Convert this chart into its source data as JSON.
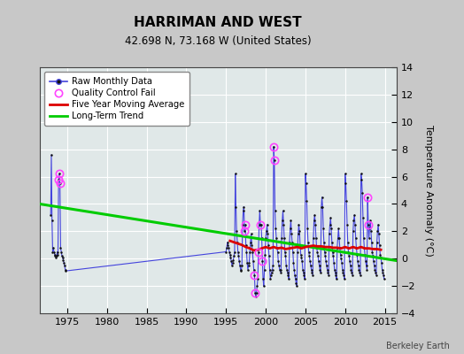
{
  "title": "HARRIMAN AND WEST",
  "subtitle": "42.698 N, 73.168 W (United States)",
  "ylabel_right": "Temperature Anomaly (°C)",
  "watermark": "Berkeley Earth",
  "xlim": [
    1971.5,
    2016.5
  ],
  "ylim": [
    -4,
    14
  ],
  "yticks": [
    -4,
    -2,
    0,
    2,
    4,
    6,
    8,
    10,
    12,
    14
  ],
  "xticks": [
    1975,
    1980,
    1985,
    1990,
    1995,
    2000,
    2005,
    2010,
    2015
  ],
  "bg_color": "#c8c8c8",
  "plot_bg_color": "#e0e8e8",
  "grid_color": "#ffffff",
  "raw_line_color": "#4444dd",
  "raw_dot_color": "#111111",
  "qc_color": "#ff44ff",
  "moving_avg_color": "#dd0000",
  "trend_color": "#00cc00",
  "legend_labels": [
    "Raw Monthly Data",
    "Quality Control Fail",
    "Five Year Moving Average",
    "Long-Term Trend"
  ],
  "trend_x": [
    1971.5,
    2016.5
  ],
  "trend_y": [
    4.0,
    -0.15
  ],
  "moving_avg_x": [
    1995.5,
    1996.0,
    1996.5,
    1997.0,
    1997.5,
    1998.0,
    1998.5,
    1999.0,
    1999.5,
    2000.0,
    2000.5,
    2001.0,
    2001.5,
    2002.0,
    2002.5,
    2003.0,
    2003.5,
    2004.0,
    2004.5,
    2005.0,
    2005.5,
    2006.0,
    2006.5,
    2007.0,
    2007.5,
    2008.0,
    2008.5,
    2009.0,
    2009.5,
    2010.0,
    2010.5,
    2011.0,
    2011.5,
    2012.0,
    2012.5,
    2013.0,
    2013.5,
    2014.0,
    2014.5
  ],
  "moving_avg_y": [
    1.3,
    1.2,
    1.1,
    1.0,
    0.85,
    0.75,
    0.6,
    0.65,
    0.75,
    0.85,
    0.75,
    0.85,
    0.75,
    0.8,
    0.7,
    0.75,
    0.8,
    0.85,
    0.75,
    0.85,
    0.9,
    0.95,
    0.9,
    0.9,
    0.85,
    0.85,
    0.8,
    0.8,
    0.75,
    0.85,
    0.75,
    0.85,
    0.75,
    0.85,
    0.75,
    0.75,
    0.7,
    0.7,
    0.65
  ],
  "raw_data": [
    [
      1972.917,
      3.2
    ],
    [
      1973.0,
      7.6
    ],
    [
      1973.083,
      2.8
    ],
    [
      1973.167,
      0.5
    ],
    [
      1973.25,
      0.8
    ],
    [
      1973.333,
      0.5
    ],
    [
      1973.417,
      0.3
    ],
    [
      1973.5,
      0.2
    ],
    [
      1973.583,
      0.1
    ],
    [
      1973.667,
      0.2
    ],
    [
      1973.75,
      0.5
    ],
    [
      1973.833,
      0.3
    ],
    [
      1973.917,
      5.8
    ],
    [
      1974.0,
      6.2
    ],
    [
      1974.083,
      5.5
    ],
    [
      1974.167,
      0.8
    ],
    [
      1974.25,
      0.5
    ],
    [
      1974.333,
      0.2
    ],
    [
      1974.417,
      0.1
    ],
    [
      1974.5,
      -0.1
    ],
    [
      1974.583,
      -0.3
    ],
    [
      1974.667,
      -0.5
    ],
    [
      1974.75,
      -0.8
    ],
    [
      1974.833,
      -0.9
    ],
    [
      1995.0,
      0.5
    ],
    [
      1995.083,
      0.8
    ],
    [
      1995.167,
      1.2
    ],
    [
      1995.25,
      1.0
    ],
    [
      1995.333,
      0.8
    ],
    [
      1995.417,
      0.5
    ],
    [
      1995.5,
      0.3
    ],
    [
      1995.583,
      0.1
    ],
    [
      1995.667,
      -0.2
    ],
    [
      1995.75,
      -0.5
    ],
    [
      1995.833,
      -0.3
    ],
    [
      1995.917,
      -0.1
    ],
    [
      1996.0,
      0.2
    ],
    [
      1996.083,
      0.5
    ],
    [
      1996.167,
      6.2
    ],
    [
      1996.25,
      3.8
    ],
    [
      1996.333,
      2.0
    ],
    [
      1996.417,
      1.2
    ],
    [
      1996.5,
      0.5
    ],
    [
      1996.583,
      0.2
    ],
    [
      1996.667,
      -0.2
    ],
    [
      1996.75,
      -0.5
    ],
    [
      1996.833,
      -0.8
    ],
    [
      1996.917,
      -0.9
    ],
    [
      1997.0,
      -0.5
    ],
    [
      1997.083,
      2.5
    ],
    [
      1997.167,
      3.5
    ],
    [
      1997.25,
      3.8
    ],
    [
      1997.333,
      2.0
    ],
    [
      1997.417,
      2.5
    ],
    [
      1997.5,
      1.0
    ],
    [
      1997.583,
      0.5
    ],
    [
      1997.667,
      -0.3
    ],
    [
      1997.75,
      -0.8
    ],
    [
      1997.833,
      -0.5
    ],
    [
      1997.917,
      -0.3
    ],
    [
      1998.0,
      0.5
    ],
    [
      1998.083,
      1.2
    ],
    [
      1998.167,
      1.8
    ],
    [
      1998.25,
      1.0
    ],
    [
      1998.333,
      0.5
    ],
    [
      1998.417,
      -0.2
    ],
    [
      1998.5,
      -0.8
    ],
    [
      1998.583,
      -1.2
    ],
    [
      1998.667,
      -2.5
    ],
    [
      1998.75,
      -2.8
    ],
    [
      1998.833,
      -2.5
    ],
    [
      1998.917,
      -2.0
    ],
    [
      1999.0,
      -1.5
    ],
    [
      1999.083,
      0.5
    ],
    [
      1999.167,
      2.5
    ],
    [
      1999.25,
      3.5
    ],
    [
      1999.333,
      2.5
    ],
    [
      1999.417,
      2.5
    ],
    [
      1999.5,
      1.5
    ],
    [
      1999.583,
      -0.2
    ],
    [
      1999.667,
      -1.5
    ],
    [
      1999.75,
      -2.0
    ],
    [
      1999.833,
      -0.8
    ],
    [
      1999.917,
      0.3
    ],
    [
      2000.0,
      1.5
    ],
    [
      2000.083,
      2.0
    ],
    [
      2000.167,
      2.5
    ],
    [
      2000.25,
      1.8
    ],
    [
      2000.333,
      1.0
    ],
    [
      2000.417,
      0.2
    ],
    [
      2000.5,
      -0.8
    ],
    [
      2000.583,
      -1.5
    ],
    [
      2000.667,
      -1.2
    ],
    [
      2000.75,
      -1.0
    ],
    [
      2000.833,
      -0.8
    ],
    [
      2000.917,
      -0.5
    ],
    [
      2001.0,
      8.2
    ],
    [
      2001.083,
      7.2
    ],
    [
      2001.167,
      3.5
    ],
    [
      2001.25,
      2.2
    ],
    [
      2001.333,
      1.5
    ],
    [
      2001.417,
      0.8
    ],
    [
      2001.5,
      0.5
    ],
    [
      2001.583,
      -0.2
    ],
    [
      2001.667,
      -0.5
    ],
    [
      2001.75,
      -0.8
    ],
    [
      2001.833,
      -0.8
    ],
    [
      2001.917,
      -1.0
    ],
    [
      2002.0,
      1.5
    ],
    [
      2002.083,
      2.8
    ],
    [
      2002.167,
      3.5
    ],
    [
      2002.25,
      2.5
    ],
    [
      2002.333,
      1.5
    ],
    [
      2002.417,
      0.5
    ],
    [
      2002.5,
      0.2
    ],
    [
      2002.583,
      -0.5
    ],
    [
      2002.667,
      -0.8
    ],
    [
      2002.75,
      -1.0
    ],
    [
      2002.833,
      -1.2
    ],
    [
      2002.917,
      -1.5
    ],
    [
      2003.0,
      1.2
    ],
    [
      2003.083,
      2.2
    ],
    [
      2003.167,
      2.8
    ],
    [
      2003.25,
      1.8
    ],
    [
      2003.333,
      1.2
    ],
    [
      2003.417,
      0.5
    ],
    [
      2003.5,
      -0.3
    ],
    [
      2003.583,
      -0.8
    ],
    [
      2003.667,
      -1.2
    ],
    [
      2003.75,
      -1.5
    ],
    [
      2003.833,
      -1.8
    ],
    [
      2003.917,
      -2.0
    ],
    [
      2004.0,
      0.5
    ],
    [
      2004.083,
      1.8
    ],
    [
      2004.167,
      2.5
    ],
    [
      2004.25,
      2.0
    ],
    [
      2004.333,
      1.0
    ],
    [
      2004.417,
      0.3
    ],
    [
      2004.5,
      0.1
    ],
    [
      2004.583,
      -0.2
    ],
    [
      2004.667,
      -0.8
    ],
    [
      2004.75,
      -1.0
    ],
    [
      2004.833,
      -1.2
    ],
    [
      2004.917,
      -1.5
    ],
    [
      2005.0,
      6.2
    ],
    [
      2005.083,
      5.5
    ],
    [
      2005.167,
      4.2
    ],
    [
      2005.25,
      2.2
    ],
    [
      2005.333,
      1.2
    ],
    [
      2005.417,
      0.5
    ],
    [
      2005.5,
      0.2
    ],
    [
      2005.583,
      -0.2
    ],
    [
      2005.667,
      -0.5
    ],
    [
      2005.75,
      -0.8
    ],
    [
      2005.833,
      -1.0
    ],
    [
      2005.917,
      -1.2
    ],
    [
      2006.0,
      1.5
    ],
    [
      2006.083,
      2.8
    ],
    [
      2006.167,
      3.2
    ],
    [
      2006.25,
      2.5
    ],
    [
      2006.333,
      1.5
    ],
    [
      2006.417,
      0.8
    ],
    [
      2006.5,
      0.5
    ],
    [
      2006.583,
      0.2
    ],
    [
      2006.667,
      -0.2
    ],
    [
      2006.75,
      -0.5
    ],
    [
      2006.833,
      -0.8
    ],
    [
      2006.917,
      -1.0
    ],
    [
      2007.0,
      3.8
    ],
    [
      2007.083,
      4.5
    ],
    [
      2007.167,
      3.8
    ],
    [
      2007.25,
      2.2
    ],
    [
      2007.333,
      1.2
    ],
    [
      2007.417,
      0.5
    ],
    [
      2007.5,
      0.2
    ],
    [
      2007.583,
      -0.2
    ],
    [
      2007.667,
      -0.5
    ],
    [
      2007.75,
      -0.8
    ],
    [
      2007.833,
      -1.0
    ],
    [
      2007.917,
      -1.2
    ],
    [
      2008.0,
      1.8
    ],
    [
      2008.083,
      2.5
    ],
    [
      2008.167,
      3.0
    ],
    [
      2008.25,
      2.2
    ],
    [
      2008.333,
      1.2
    ],
    [
      2008.417,
      0.5
    ],
    [
      2008.5,
      0.2
    ],
    [
      2008.583,
      -0.3
    ],
    [
      2008.667,
      -0.8
    ],
    [
      2008.75,
      -1.0
    ],
    [
      2008.833,
      -1.2
    ],
    [
      2008.917,
      -1.5
    ],
    [
      2009.0,
      0.8
    ],
    [
      2009.083,
      1.5
    ],
    [
      2009.167,
      2.2
    ],
    [
      2009.25,
      1.5
    ],
    [
      2009.333,
      0.8
    ],
    [
      2009.417,
      0.3
    ],
    [
      2009.5,
      0.0
    ],
    [
      2009.583,
      -0.3
    ],
    [
      2009.667,
      -0.8
    ],
    [
      2009.75,
      -1.0
    ],
    [
      2009.833,
      -1.2
    ],
    [
      2009.917,
      -1.5
    ],
    [
      2010.0,
      6.2
    ],
    [
      2010.083,
      5.5
    ],
    [
      2010.167,
      4.2
    ],
    [
      2010.25,
      2.5
    ],
    [
      2010.333,
      1.2
    ],
    [
      2010.417,
      0.5
    ],
    [
      2010.5,
      0.2
    ],
    [
      2010.583,
      -0.2
    ],
    [
      2010.667,
      -0.5
    ],
    [
      2010.75,
      -0.8
    ],
    [
      2010.833,
      -1.0
    ],
    [
      2010.917,
      -1.2
    ],
    [
      2011.0,
      2.0
    ],
    [
      2011.083,
      2.8
    ],
    [
      2011.167,
      3.2
    ],
    [
      2011.25,
      2.5
    ],
    [
      2011.333,
      1.5
    ],
    [
      2011.417,
      0.8
    ],
    [
      2011.5,
      0.3
    ],
    [
      2011.583,
      -0.2
    ],
    [
      2011.667,
      -0.5
    ],
    [
      2011.75,
      -0.8
    ],
    [
      2011.833,
      -1.0
    ],
    [
      2011.917,
      -1.2
    ],
    [
      2012.0,
      6.2
    ],
    [
      2012.083,
      5.8
    ],
    [
      2012.167,
      4.8
    ],
    [
      2012.25,
      3.0
    ],
    [
      2012.333,
      1.5
    ],
    [
      2012.417,
      0.8
    ],
    [
      2012.5,
      0.3
    ],
    [
      2012.583,
      -0.2
    ],
    [
      2012.667,
      -0.5
    ],
    [
      2012.75,
      -0.8
    ],
    [
      2012.833,
      4.5
    ],
    [
      2012.917,
      2.5
    ],
    [
      2013.0,
      1.5
    ],
    [
      2013.083,
      2.2
    ],
    [
      2013.167,
      2.8
    ],
    [
      2013.25,
      2.0
    ],
    [
      2013.333,
      1.2
    ],
    [
      2013.417,
      0.5
    ],
    [
      2013.5,
      0.2
    ],
    [
      2013.583,
      -0.2
    ],
    [
      2013.667,
      -0.5
    ],
    [
      2013.75,
      -0.8
    ],
    [
      2013.833,
      -1.0
    ],
    [
      2013.917,
      -1.2
    ],
    [
      2014.0,
      1.2
    ],
    [
      2014.083,
      2.0
    ],
    [
      2014.167,
      2.5
    ],
    [
      2014.25,
      1.8
    ],
    [
      2014.333,
      1.0
    ],
    [
      2014.417,
      0.3
    ],
    [
      2014.5,
      0.1
    ],
    [
      2014.583,
      -0.3
    ],
    [
      2014.667,
      -0.8
    ],
    [
      2014.75,
      -1.0
    ],
    [
      2014.833,
      -1.2
    ],
    [
      2014.917,
      -1.5
    ]
  ],
  "qc_points": [
    [
      1973.917,
      5.8
    ],
    [
      1974.0,
      6.2
    ],
    [
      1974.083,
      5.5
    ],
    [
      1997.333,
      2.0
    ],
    [
      1997.417,
      2.5
    ],
    [
      1998.583,
      -1.2
    ],
    [
      1998.667,
      -2.5
    ],
    [
      1999.083,
      0.5
    ],
    [
      1999.333,
      2.5
    ],
    [
      1999.583,
      -0.2
    ],
    [
      2001.0,
      8.2
    ],
    [
      2001.083,
      7.2
    ],
    [
      2012.833,
      4.5
    ],
    [
      2012.917,
      2.5
    ]
  ]
}
